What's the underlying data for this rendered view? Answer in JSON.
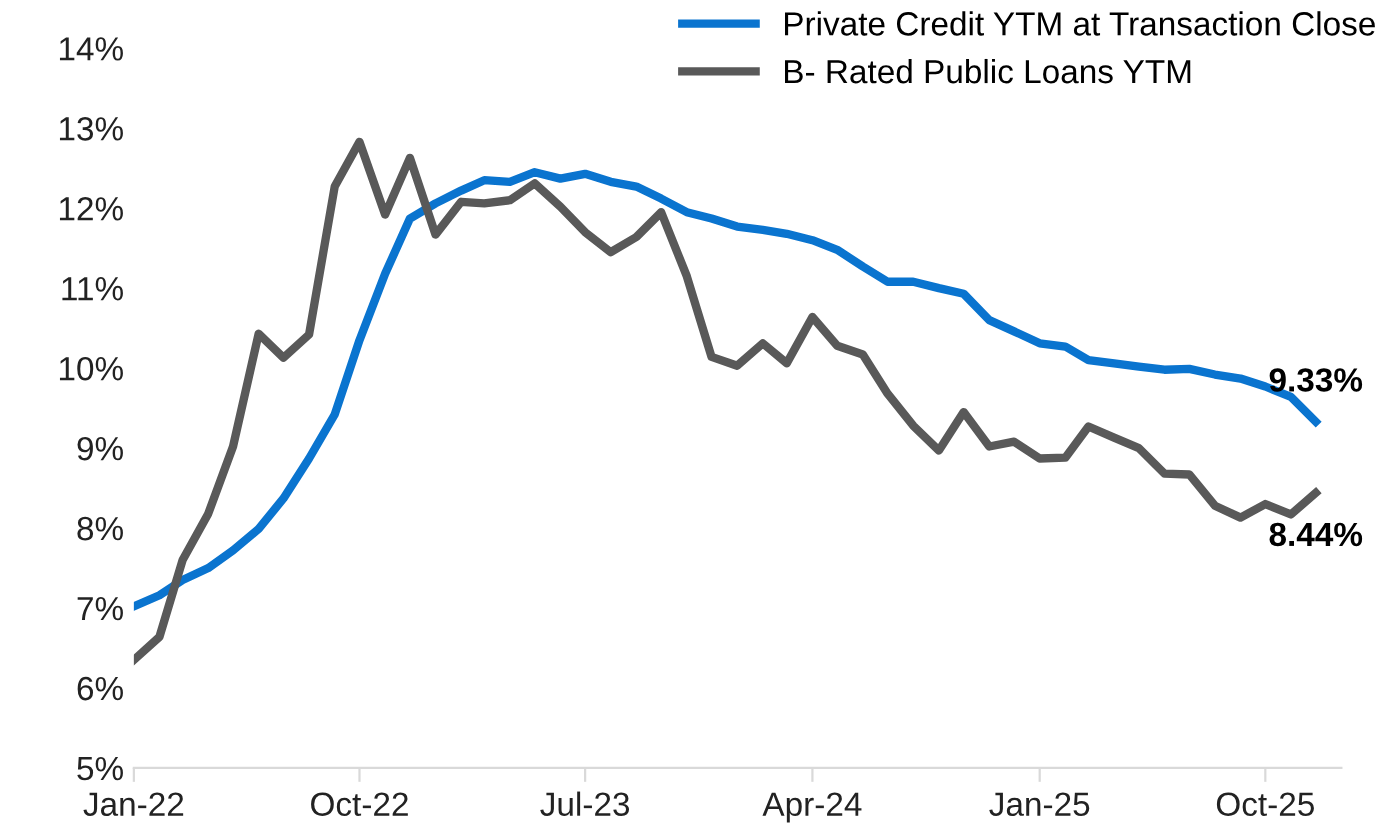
{
  "chart_data": {
    "type": "line",
    "x": [
      "2022-01",
      "2022-02",
      "2022-03",
      "2022-04",
      "2022-05",
      "2022-06",
      "2022-07",
      "2022-08",
      "2022-09",
      "2022-10",
      "2022-11",
      "2022-12",
      "2023-01",
      "2023-02",
      "2023-03",
      "2023-04",
      "2023-05",
      "2023-06",
      "2023-07",
      "2023-08",
      "2023-09",
      "2023-10",
      "2023-11",
      "2023-12",
      "2024-01",
      "2024-02",
      "2024-03",
      "2024-04",
      "2024-05",
      "2024-06",
      "2024-07",
      "2024-08",
      "2024-09",
      "2024-10",
      "2024-11",
      "2024-12",
      "2025-01",
      "2025-02",
      "2025-03",
      "2025-04",
      "2025-05",
      "2025-06",
      "2025-07",
      "2025-08",
      "2025-09",
      "2025-10",
      "2025-11",
      "2025-12"
    ],
    "series": [
      {
        "name": "Private Credit YTM at Transaction Close",
        "color": "#0a74cf",
        "values": [
          7.02,
          7.16,
          7.35,
          7.5,
          7.72,
          7.99,
          8.37,
          8.87,
          9.42,
          10.35,
          11.18,
          11.87,
          12.06,
          12.22,
          12.35,
          12.33,
          12.45,
          12.37,
          12.43,
          12.33,
          12.27,
          12.12,
          11.95,
          11.87,
          11.77,
          11.73,
          11.68,
          11.6,
          11.48,
          11.27,
          11.08,
          11.08,
          11.0,
          10.93,
          10.6,
          10.46,
          10.31,
          10.27,
          10.1,
          10.06,
          10.02,
          9.98,
          9.99,
          9.92,
          9.87,
          9.77,
          9.64,
          9.33
        ]
      },
      {
        "name": "B- Rated Public Loans YTM",
        "color": "#595959",
        "values": [
          6.35,
          6.64,
          7.6,
          8.18,
          9.02,
          10.43,
          10.13,
          10.42,
          12.27,
          12.83,
          11.92,
          12.63,
          11.67,
          12.08,
          12.06,
          12.1,
          12.31,
          12.02,
          11.7,
          11.45,
          11.64,
          11.95,
          11.15,
          10.14,
          10.03,
          10.31,
          10.06,
          10.64,
          10.28,
          10.17,
          9.68,
          9.28,
          8.97,
          9.45,
          9.02,
          9.08,
          8.87,
          8.88,
          9.27,
          9.13,
          9.0,
          8.68,
          8.67,
          8.28,
          8.13,
          8.3,
          8.17,
          8.44
        ]
      }
    ],
    "ylim": [
      5,
      14
    ],
    "yticks": [
      {
        "value": 5,
        "label": "5%"
      },
      {
        "value": 6,
        "label": "6%"
      },
      {
        "value": 7,
        "label": "7%"
      },
      {
        "value": 8,
        "label": "8%"
      },
      {
        "value": 9,
        "label": "9%"
      },
      {
        "value": 10,
        "label": "10%"
      },
      {
        "value": 11,
        "label": "11%"
      },
      {
        "value": 12,
        "label": "12%"
      },
      {
        "value": 13,
        "label": "13%"
      },
      {
        "value": 14,
        "label": "14%"
      }
    ],
    "xlim": [
      "2022-01",
      "2026-01"
    ],
    "xticks": [
      {
        "value": "2022-01",
        "label": "Jan-22"
      },
      {
        "value": "2022-10",
        "label": "Oct-22"
      },
      {
        "value": "2023-07",
        "label": "Jul-23"
      },
      {
        "value": "2024-04",
        "label": "Apr-24"
      },
      {
        "value": "2025-01",
        "label": "Jan-25"
      },
      {
        "value": "2025-10",
        "label": "Oct-25"
      }
    ],
    "annotations": [
      {
        "text": "9.33%",
        "x": "2025-12",
        "y": 9.33
      },
      {
        "text": "8.44%",
        "x": "2025-12",
        "y": 8.44
      }
    ],
    "legend": "top right",
    "grid": false,
    "marker": "none",
    "line_style": "solid"
  }
}
